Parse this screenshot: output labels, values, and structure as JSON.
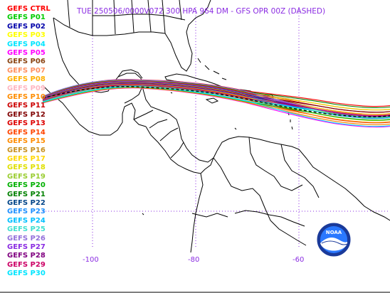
{
  "title": "TUE 250506/0000V072  300 HPA 964 DM - GFS OPR 00Z (DASHED)",
  "legend": [
    {
      "label": "GEFS CTRL",
      "color": "#ff0000"
    },
    {
      "label": "GEFS P01",
      "color": "#00cc00"
    },
    {
      "label": "GEFS P02",
      "color": "#0000aa"
    },
    {
      "label": "GEFS P03",
      "color": "#ffff00"
    },
    {
      "label": "GEFS P04",
      "color": "#00e5ff"
    },
    {
      "label": "GEFS P05",
      "color": "#ff00ff"
    },
    {
      "label": "GEFS P06",
      "color": "#8b4513"
    },
    {
      "label": "GEFS P07",
      "color": "#ff9060"
    },
    {
      "label": "GEFS P08",
      "color": "#ffb000"
    },
    {
      "label": "GEFS P09",
      "color": "#ffb6c1"
    },
    {
      "label": "GEFS P10",
      "color": "#ff8c00"
    },
    {
      "label": "GEFS P11",
      "color": "#cc0000"
    },
    {
      "label": "GEFS P12",
      "color": "#800000"
    },
    {
      "label": "GEFS P13",
      "color": "#dd0000"
    },
    {
      "label": "GEFS P14",
      "color": "#ff4500"
    },
    {
      "label": "GEFS P15",
      "color": "#ff8c00"
    },
    {
      "label": "GEFS P16",
      "color": "#c89020"
    },
    {
      "label": "GEFS P17",
      "color": "#ffd700"
    },
    {
      "label": "GEFS P18",
      "color": "#e0e000"
    },
    {
      "label": "GEFS P19",
      "color": "#9acd32"
    },
    {
      "label": "GEFS P20",
      "color": "#00b000"
    },
    {
      "label": "GEFS P21",
      "color": "#008000"
    },
    {
      "label": "GEFS P22",
      "color": "#004488"
    },
    {
      "label": "GEFS P23",
      "color": "#1e90ff"
    },
    {
      "label": "GEFS P24",
      "color": "#00bfff"
    },
    {
      "label": "GEFS P25",
      "color": "#40e0d0"
    },
    {
      "label": "GEFS P26",
      "color": "#9370db"
    },
    {
      "label": "GEFS P27",
      "color": "#8a2be2"
    },
    {
      "label": "GEFS P28",
      "color": "#800080"
    },
    {
      "label": "GEFS P29",
      "color": "#cc0066"
    },
    {
      "label": "GEFS P30",
      "color": "#00e5ff"
    }
  ],
  "longitude_labels": [
    "-100",
    "-80",
    "-60"
  ],
  "logo_text": "NOAA"
}
